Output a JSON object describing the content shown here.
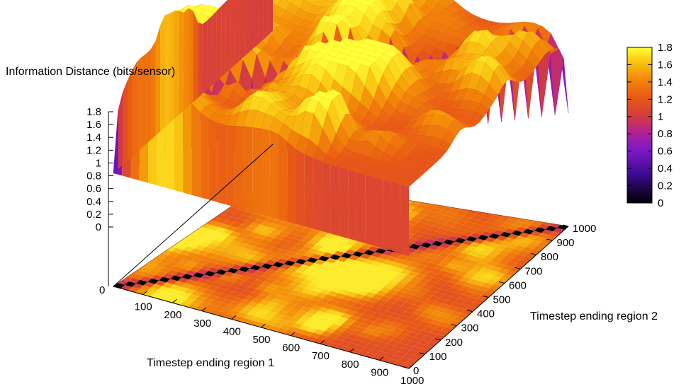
{
  "chart_data": {
    "type": "surface3d",
    "title": "",
    "zlabel": "Information Distance (bits/sensor)",
    "xlabel": "Timestep ending region 1",
    "ylabel": "Timestep ending region 2",
    "xlim": [
      0,
      1000
    ],
    "ylim": [
      0,
      1000
    ],
    "zlim": [
      0,
      1.8
    ],
    "x_ticks": [
      "0",
      "100",
      "200",
      "300",
      "400",
      "500",
      "600",
      "700",
      "800",
      "900",
      "1000"
    ],
    "y_ticks": [
      "0",
      "100",
      "200",
      "300",
      "400",
      "500",
      "600",
      "700",
      "800",
      "900",
      "1000"
    ],
    "z_ticks": [
      "0",
      "0.2",
      "0.4",
      "0.6",
      "0.8",
      "1",
      "1.2",
      "1.4",
      "1.6",
      "1.8"
    ],
    "colorbar": {
      "range": [
        0,
        1.8
      ],
      "ticks": [
        "0",
        "0.2",
        "0.4",
        "0.6",
        "0.8",
        "1",
        "1.2",
        "1.4",
        "1.6",
        "1.8"
      ],
      "palette": [
        "#000000",
        "#3a0a8c",
        "#7a18c8",
        "#b0209a",
        "#d23a44",
        "#e85a14",
        "#f38a08",
        "#facc14",
        "#ffff3a"
      ]
    },
    "surface_range": [
      0.0,
      1.8
    ],
    "surface_typical": 1.35,
    "diagonal_value": 0.0,
    "floor_projection": "heatmap",
    "grid": false
  }
}
